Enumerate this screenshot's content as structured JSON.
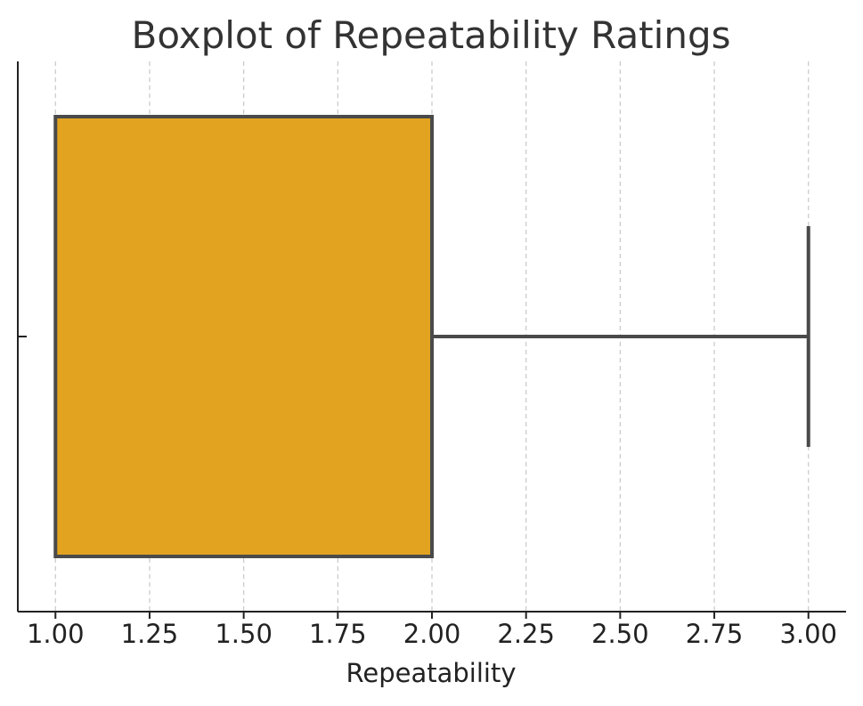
{
  "chart_data": {
    "type": "boxplot",
    "title": "Boxplot of Repeatability Ratings",
    "xlabel": "Repeatability",
    "ylabel": "",
    "orientation": "horizontal",
    "xlim": [
      0.9,
      3.1
    ],
    "xticks": [
      1.0,
      1.25,
      1.5,
      1.75,
      2.0,
      2.25,
      2.5,
      2.75,
      3.0
    ],
    "xtick_labels": [
      "1.00",
      "1.25",
      "1.50",
      "1.75",
      "2.00",
      "2.25",
      "2.50",
      "2.75",
      "3.00"
    ],
    "grid": "x dashed",
    "box": {
      "whisker_low": 1.0,
      "q1": 1.0,
      "median": 2.0,
      "q3": 2.0,
      "whisker_high": 3.0
    },
    "colors": {
      "box_fill": "#e1a320",
      "box_edge": "#4a4a4a",
      "grid": "#c8c8c8",
      "axis": "#222222",
      "title": "#333333"
    }
  }
}
